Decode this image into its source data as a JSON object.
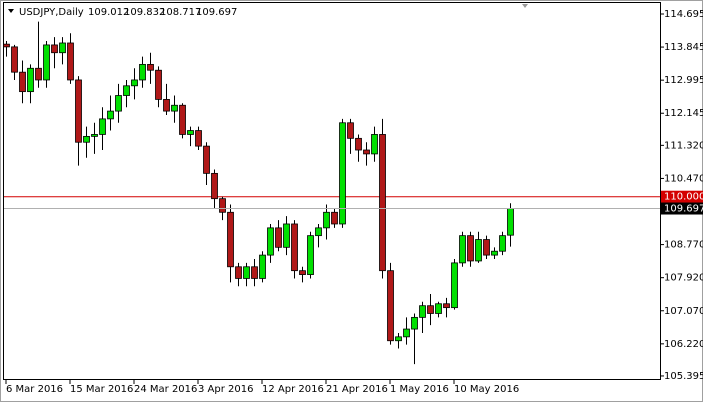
{
  "chart_data": {
    "type": "candlestick",
    "title": "USDJPY,Daily",
    "categories": [
      "6 Mar 2016",
      null,
      null,
      null,
      null,
      null,
      null,
      null,
      "15 Mar 2016",
      null,
      null,
      null,
      null,
      null,
      null,
      null,
      "24 Mar 2016",
      null,
      null,
      null,
      null,
      null,
      null,
      null,
      "3 Apr 2016",
      null,
      null,
      null,
      null,
      null,
      null,
      null,
      "12 Apr 2016",
      null,
      null,
      null,
      null,
      null,
      null,
      null,
      "21 Apr 2016",
      null,
      null,
      null,
      null,
      null,
      null,
      null,
      "1 May 2016",
      null,
      null,
      null,
      null,
      null,
      null,
      null,
      "10 May 2016",
      null,
      null,
      null,
      null,
      null,
      null,
      null
    ],
    "open": [
      113.92,
      113.85,
      113.2,
      112.7,
      113.3,
      113.0,
      113.9,
      113.7,
      113.95,
      113.0,
      111.4,
      111.55,
      111.6,
      112.0,
      112.2,
      112.6,
      112.85,
      113.0,
      113.4,
      113.25,
      112.5,
      112.2,
      112.35,
      111.6,
      111.7,
      111.3,
      110.6,
      109.95,
      109.6,
      108.2,
      107.9,
      108.2,
      107.9,
      108.5,
      109.2,
      108.7,
      109.3,
      108.1,
      108.0,
      109.0,
      109.2,
      109.6,
      109.3,
      111.9,
      111.5,
      111.2,
      111.1,
      111.6,
      108.1,
      106.3,
      106.4,
      106.6,
      106.9,
      107.2,
      107.0,
      107.25,
      107.15,
      108.3,
      109.0,
      108.35,
      108.9,
      108.5,
      108.6,
      109.012
    ],
    "high": [
      114.0,
      113.9,
      113.5,
      113.4,
      114.5,
      114.0,
      114.1,
      114.1,
      114.2,
      113.1,
      111.8,
      111.9,
      112.3,
      112.6,
      112.9,
      113.0,
      113.3,
      113.6,
      113.7,
      113.35,
      112.9,
      112.6,
      112.4,
      111.8,
      111.8,
      111.4,
      110.7,
      110.0,
      109.8,
      108.3,
      108.3,
      108.4,
      108.6,
      109.3,
      109.4,
      109.5,
      109.4,
      108.2,
      109.1,
      109.3,
      109.8,
      109.7,
      112.0,
      112.0,
      111.6,
      111.4,
      111.8,
      112.0,
      108.3,
      106.5,
      106.9,
      107.0,
      107.3,
      107.5,
      107.3,
      107.4,
      108.4,
      109.1,
      109.1,
      109.1,
      109.0,
      108.7,
      109.1,
      109.832
    ],
    "low": [
      113.6,
      113.0,
      112.4,
      112.4,
      112.8,
      112.8,
      113.3,
      113.4,
      112.9,
      110.8,
      111.0,
      111.1,
      111.2,
      111.7,
      111.9,
      112.3,
      112.5,
      112.8,
      112.9,
      112.3,
      112.1,
      111.9,
      111.5,
      111.3,
      111.2,
      110.3,
      109.7,
      109.4,
      107.8,
      107.7,
      107.7,
      107.7,
      107.8,
      108.3,
      108.6,
      108.5,
      107.9,
      107.8,
      107.9,
      108.7,
      108.9,
      109.2,
      109.2,
      111.1,
      110.9,
      110.8,
      110.9,
      107.9,
      106.2,
      106.1,
      106.2,
      105.7,
      106.5,
      106.7,
      106.9,
      106.9,
      107.1,
      108.2,
      108.2,
      108.3,
      108.4,
      108.4,
      108.5,
      108.717
    ],
    "close": [
      113.85,
      113.2,
      112.7,
      113.3,
      113.0,
      113.9,
      113.7,
      113.95,
      113.0,
      111.4,
      111.55,
      111.6,
      112.0,
      112.2,
      112.6,
      112.85,
      113.0,
      113.4,
      113.25,
      112.5,
      112.2,
      112.35,
      111.6,
      111.7,
      111.3,
      110.6,
      109.95,
      109.6,
      108.2,
      107.9,
      108.2,
      107.9,
      108.5,
      109.2,
      108.7,
      109.3,
      108.1,
      108.0,
      109.0,
      109.2,
      109.6,
      109.3,
      111.9,
      111.5,
      111.2,
      111.1,
      111.6,
      108.1,
      106.3,
      106.4,
      106.6,
      106.9,
      107.2,
      107.0,
      107.25,
      107.15,
      108.3,
      109.0,
      108.35,
      108.9,
      108.5,
      108.6,
      109.0,
      109.697
    ],
    "up_color": "#00e000",
    "down_color": "#b01818",
    "ylim": [
      105.291,
      115.003
    ],
    "yticks": [
      114.695,
      113.845,
      112.995,
      112.145,
      {
        "value": 111.32,
        "label": "111.320"
      },
      {
        "value": 110.47,
        "label": "110.470"
      },
      {
        "value": 108.77,
        "label": "108.770"
      },
      {
        "value": 107.92,
        "label": "107.920"
      },
      {
        "value": 107.07,
        "label": "107.070"
      },
      {
        "value": 106.22,
        "label": "106.220"
      },
      105.395
    ],
    "level_line": {
      "value": 110,
      "label": "110.000",
      "color": "#d40000"
    }
  }
}
